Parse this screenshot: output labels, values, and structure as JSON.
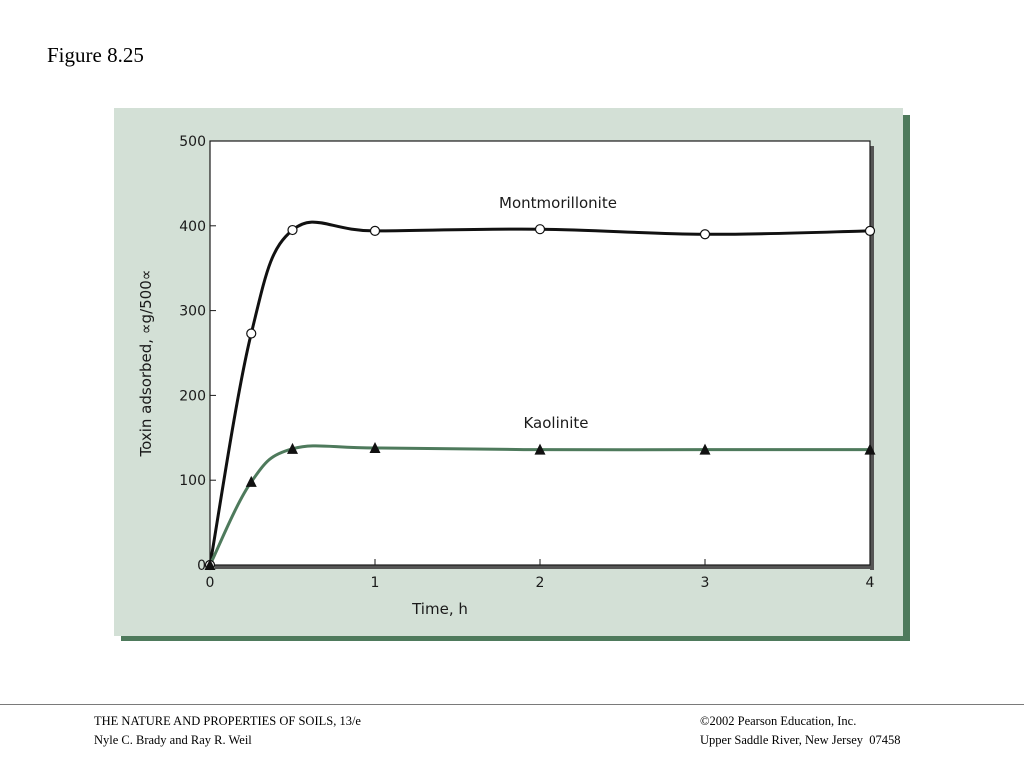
{
  "figure_title": "Figure 8.25",
  "footer": {
    "left_line1": "THE NATURE AND PROPERTIES OF SOILS, 13/e",
    "left_line2": "Nyle C. Brady and Ray R. Weil",
    "right_line1": "©2002 Pearson Education, Inc.",
    "right_line2": "Upper Saddle River, New Jersey  07458"
  },
  "colors": {
    "panel": "#d3e0d6",
    "panel_shadow": "#4e7a5c",
    "montmorillonite": "#111111",
    "kaolinite": "#4e7a5c"
  },
  "chart_data": {
    "type": "line",
    "xlabel": "Time, h",
    "ylabel": "Toxin adsorbed, ∝g/500∝",
    "xlim": [
      0,
      4
    ],
    "ylim": [
      0,
      500
    ],
    "x_ticks": [
      0,
      1,
      2,
      3,
      4
    ],
    "x_tick_labels": [
      "0",
      "1",
      "2",
      "3",
      "4"
    ],
    "y_ticks": [
      0,
      100,
      200,
      300,
      400,
      500
    ],
    "y_tick_labels": [
      "0",
      "100",
      "200",
      "300",
      "400",
      "500"
    ],
    "grid": false,
    "series": [
      {
        "name": "Montmorillonite",
        "marker": "open-circle",
        "x": [
          0,
          0.25,
          0.5,
          1,
          2,
          3,
          4
        ],
        "y": [
          0,
          273,
          395,
          394,
          396,
          390,
          394
        ]
      },
      {
        "name": "Kaolinite",
        "marker": "filled-triangle",
        "x": [
          0,
          0.25,
          0.5,
          1,
          2,
          3,
          4
        ],
        "y": [
          0,
          98,
          137,
          138,
          136,
          136,
          136
        ]
      }
    ]
  }
}
